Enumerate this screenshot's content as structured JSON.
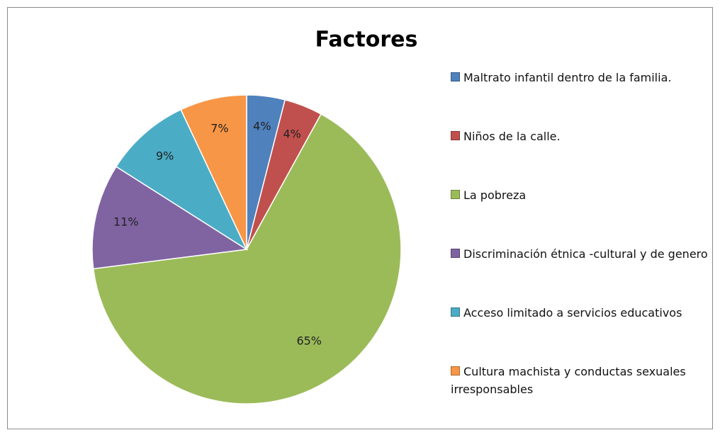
{
  "chart_data": {
    "type": "pie",
    "title": "Factores",
    "categories": [
      "Maltrato infantil dentro de la familia.",
      "Niños de la calle.",
      "La pobreza",
      "Discriminación étnica -cultural y de genero",
      "Acceso limitado a servicios educativos",
      "Cultura machista y conductas sexuales irresponsables"
    ],
    "values": [
      4,
      4,
      65,
      11,
      9,
      7
    ],
    "value_labels": [
      "4%",
      "4%",
      "65%",
      "11%",
      "9%",
      "7%"
    ],
    "colors": [
      "#4f81bd",
      "#c0504d",
      "#9bbb59",
      "#8064a2",
      "#4bacc6",
      "#f79646"
    ],
    "legend": "right"
  }
}
